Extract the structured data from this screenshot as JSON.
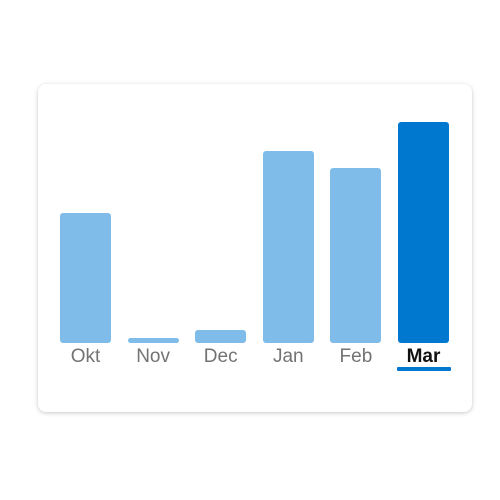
{
  "chart_data": {
    "type": "bar",
    "categories": [
      "Okt",
      "Nov",
      "Dec",
      "Jan",
      "Feb",
      "Mar"
    ],
    "values": [
      59,
      2,
      6,
      87,
      79,
      100
    ],
    "selected": "Mar",
    "grid": false,
    "legend": "none",
    "xlabel": "",
    "ylabel": "",
    "ylim": [
      0,
      100
    ]
  },
  "colors": {
    "bar": "#7fbce9",
    "bar_selected": "#0078cf",
    "label": "#737373",
    "label_selected": "#111111",
    "underline": "#0078cf",
    "card_background": "#ffffff"
  }
}
